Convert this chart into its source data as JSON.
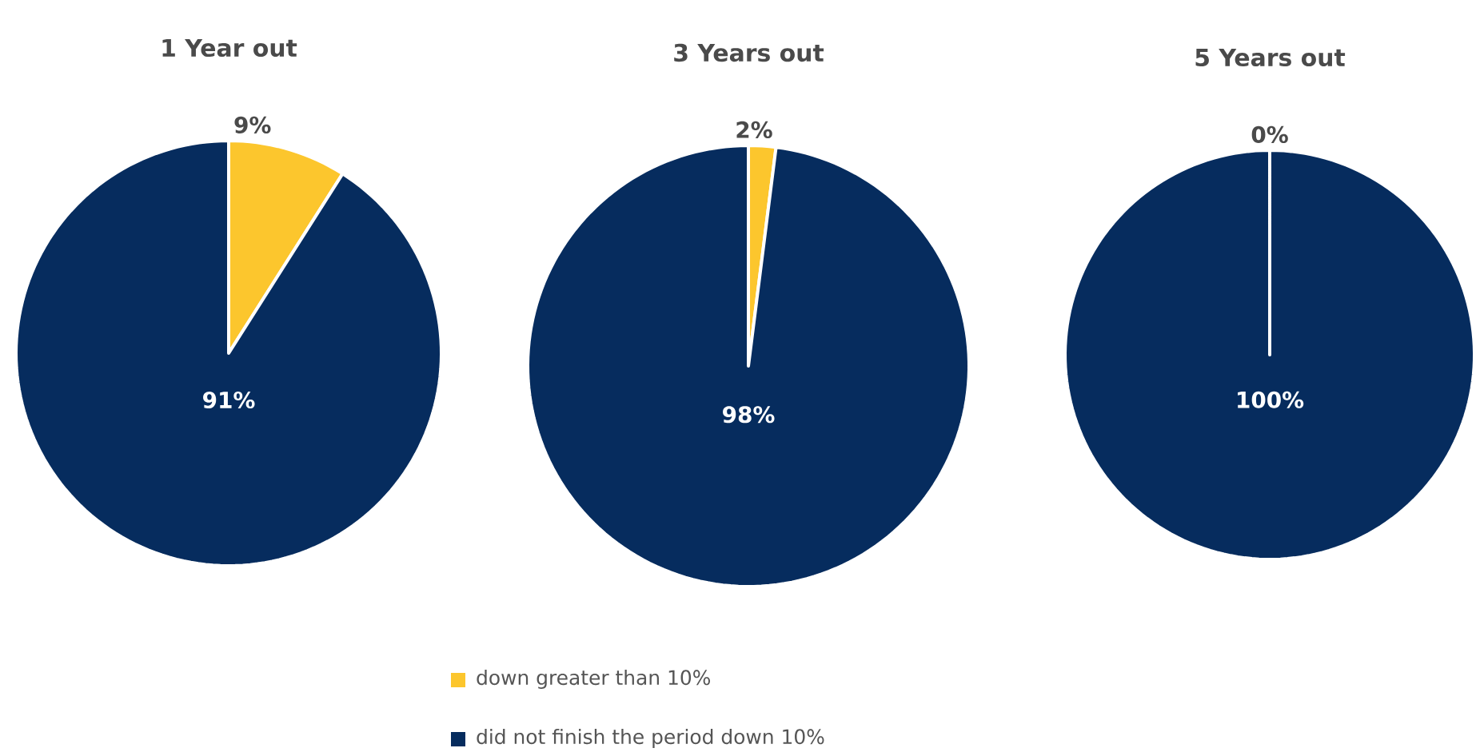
{
  "chart_data": [
    {
      "type": "pie",
      "title": "1 Year out",
      "categories": [
        null,
        null
      ],
      "values": [
        9,
        91
      ],
      "colors": [
        "#fcc62d",
        "#062c5e"
      ],
      "value_labels": [
        "9%",
        "91%"
      ]
    },
    {
      "type": "pie",
      "title": "3 Years out",
      "categories": [
        "down greater than 10%",
        "did not finish the period down 10%"
      ],
      "values": [
        2,
        98
      ],
      "colors": [
        "#fcc62d",
        "#062c5e"
      ],
      "value_labels": [
        "2%",
        "98%"
      ],
      "legend": "bottom"
    },
    {
      "type": "pie",
      "title": "5 Years out",
      "categories": [
        null,
        null
      ],
      "values": [
        0,
        100
      ],
      "colors": [
        "#fcc62d",
        "#062c5e"
      ],
      "value_labels": [
        "0%",
        "100%"
      ]
    }
  ]
}
